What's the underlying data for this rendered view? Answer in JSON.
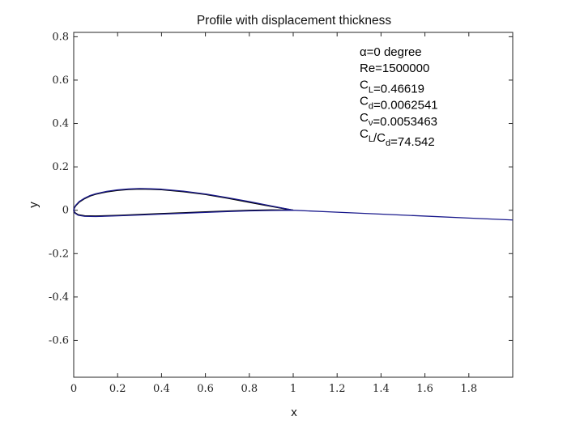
{
  "chart_data": {
    "type": "line",
    "title": "Profile with displacement thickness",
    "xlabel": "x",
    "ylabel": "y",
    "xlim": [
      0,
      2
    ],
    "ylim": [
      -0.77,
      0.82
    ],
    "xticks": [
      "0",
      "0.2",
      "0.4",
      "0.6",
      "0.8",
      "1",
      "1.2",
      "1.4",
      "1.6",
      "1.8"
    ],
    "xtick_values": [
      0,
      0.2,
      0.4,
      0.6,
      0.8,
      1.0,
      1.2,
      1.4,
      1.6,
      1.8
    ],
    "yticks": [
      "0.8",
      "0.6",
      "0.4",
      "0.2",
      "0",
      "-0.2",
      "-0.4",
      "-0.6"
    ],
    "ytick_values": [
      0.8,
      0.6,
      0.4,
      0.2,
      0,
      -0.2,
      -0.4,
      -0.6
    ],
    "grid": false,
    "series": [
      {
        "color": "#000000",
        "x": [
          1.0,
          0.9,
          0.8,
          0.7,
          0.6,
          0.5,
          0.4,
          0.35,
          0.3,
          0.25,
          0.2,
          0.15,
          0.1,
          0.075,
          0.05,
          0.025,
          0.01,
          0.003,
          0.0,
          0.005,
          0.02,
          0.05,
          0.1,
          0.2,
          0.3,
          0.4,
          0.5,
          0.6,
          0.7,
          0.8,
          0.9,
          1.0
        ],
        "y": [
          0.0,
          0.018,
          0.037,
          0.056,
          0.073,
          0.086,
          0.095,
          0.097,
          0.098,
          0.096,
          0.092,
          0.085,
          0.074,
          0.066,
          0.054,
          0.038,
          0.022,
          0.011,
          0.0,
          -0.011,
          -0.021,
          -0.026,
          -0.027,
          -0.024,
          -0.02,
          -0.016,
          -0.012,
          -0.008,
          -0.004,
          -0.001,
          0.001,
          0.0
        ]
      },
      {
        "color": "#1a1a8c",
        "x": [
          1.0,
          0.9,
          0.8,
          0.7,
          0.6,
          0.5,
          0.4,
          0.35,
          0.3,
          0.25,
          0.2,
          0.15,
          0.1,
          0.075,
          0.05,
          0.025,
          0.01,
          0.003,
          0.0,
          0.005,
          0.02,
          0.05,
          0.1,
          0.2,
          0.3,
          0.4,
          0.5,
          0.6,
          0.7,
          0.8,
          0.9,
          1.0,
          1.2,
          1.4,
          1.6,
          1.8,
          2.0
        ],
        "y": [
          0.0,
          0.02,
          0.04,
          0.058,
          0.075,
          0.088,
          0.097,
          0.099,
          0.1,
          0.098,
          0.094,
          0.087,
          0.076,
          0.068,
          0.056,
          0.04,
          0.024,
          0.013,
          0.0,
          -0.013,
          -0.023,
          -0.028,
          -0.029,
          -0.026,
          -0.022,
          -0.018,
          -0.014,
          -0.01,
          -0.006,
          -0.003,
          -0.001,
          0.0,
          -0.009,
          -0.018,
          -0.027,
          -0.036,
          -0.045
        ]
      }
    ],
    "annotations": [
      {
        "parts": [
          {
            "t": "α=0 degree"
          }
        ]
      },
      {
        "parts": [
          {
            "t": "Re=1500000"
          }
        ]
      },
      {
        "parts": [
          {
            "t": "C"
          },
          {
            "t": "L",
            "sub": true
          },
          {
            "t": "=0.46619"
          }
        ]
      },
      {
        "parts": [
          {
            "t": "C"
          },
          {
            "t": "d",
            "sub": true
          },
          {
            "t": "=0.0062541"
          }
        ]
      },
      {
        "parts": [
          {
            "t": "C"
          },
          {
            "t": "ν",
            "sub": true
          },
          {
            "t": "=0.0053463"
          }
        ]
      },
      {
        "parts": [
          {
            "t": "C"
          },
          {
            "t": "L",
            "sub": true
          },
          {
            "t": "/C"
          },
          {
            "t": "d",
            "sub": true
          },
          {
            "t": "=74.542"
          }
        ]
      }
    ]
  }
}
